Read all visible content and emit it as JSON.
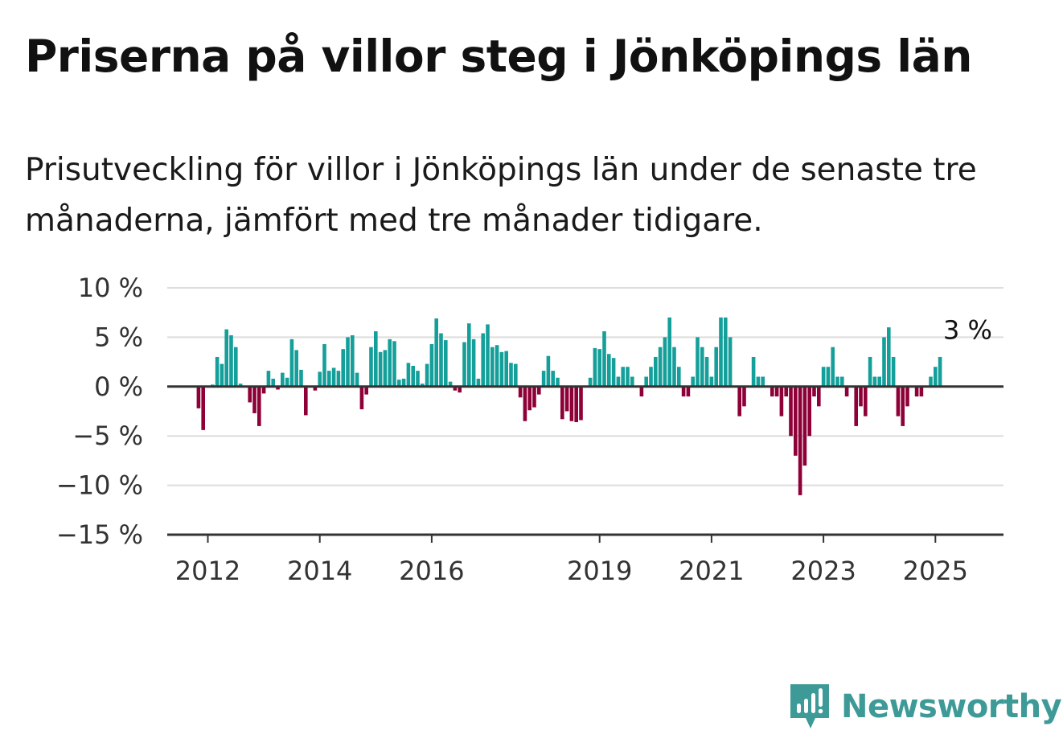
{
  "title": "Priserna på villor steg i Jönköpings län",
  "subtitle": "Prisutveckling för villor i Jönköpings län under de senaste tre månaderna, jämfört med tre månader tidigare.",
  "brand": {
    "name": "Newsworthy",
    "color": "#3d9a96",
    "icon": "bar-chart-speech-bubble-icon"
  },
  "colors": {
    "positive": "#159f9a",
    "negative": "#8e0038",
    "grid": "#dddddd",
    "zero_line": "#333333",
    "axis": "#333333"
  },
  "chart_data": {
    "type": "bar",
    "title": "Priserna på villor steg i Jönköpings län",
    "subtitle": "Prisutveckling för villor i Jönköpings län under de senaste tre månaderna, jämfört med tre månader tidigare.",
    "xlabel": "",
    "ylabel": "",
    "unit": "%",
    "ylim": [
      -15,
      10
    ],
    "y_ticks": [
      10,
      5,
      0,
      -5,
      -10,
      -15
    ],
    "y_tick_labels": [
      "10 %",
      "5 %",
      "0 %",
      "−5 %",
      "−10 %",
      "−15 %"
    ],
    "x_start": "2011-06",
    "x_end": "2025-09",
    "x_ticks": [
      "2012",
      "2014",
      "2016",
      "2019",
      "2021",
      "2023",
      "2025"
    ],
    "grid": true,
    "legend": "none",
    "annotation": {
      "label": "3 %",
      "month": "2025-08",
      "value": 3
    },
    "series": [
      {
        "start": "2011-11",
        "values": [
          -2.2,
          -4.4,
          0,
          0.2,
          3.0,
          2.3,
          5.8,
          5.2,
          4.0,
          0.3,
          0,
          -1.6,
          -2.7,
          -4.0,
          -0.7,
          1.6,
          0.8,
          -0.3,
          1.4,
          0.9,
          4.8,
          3.7,
          1.7,
          -2.9,
          0,
          -0.4,
          1.5,
          4.3,
          1.6,
          1.9,
          1.6,
          3.8,
          5.0,
          5.2,
          1.4,
          -2.3,
          -0.8,
          4.0,
          5.6,
          3.5,
          3.7,
          4.8,
          4.6,
          0.7,
          0.8,
          2.4,
          2.1,
          1.6,
          0.3,
          2.3,
          4.3,
          6.9,
          5.4,
          4.7,
          0.5,
          -0.4,
          -0.6,
          4.5,
          6.4,
          4.8,
          0.8,
          5.4,
          6.3,
          4.0,
          4.2,
          3.5,
          3.6,
          2.4,
          2.3,
          -1.1,
          -3.5,
          -2.4,
          -2.1,
          -0.8,
          1.6,
          3.1,
          1.6,
          0.9,
          -3.3,
          -2.5,
          -3.5,
          -3.6,
          -3.4,
          0,
          0.9,
          3.9,
          3.8,
          5.6,
          3.3,
          2.9,
          1.0,
          2.0,
          2.0,
          1.0,
          0,
          -1.0,
          1.0,
          2.0,
          3.0,
          4.0,
          5.0,
          7.0,
          4.0,
          2.0,
          -1.0,
          -1.0,
          1.0,
          5.0,
          4.0,
          3.0,
          1.0,
          4.0,
          7.0,
          7.0,
          5.0,
          0,
          -3.0,
          -2.0,
          0,
          3.0,
          1.0,
          1.0,
          0,
          -1.0,
          -1.0,
          -3.0,
          -1.0,
          -5.0,
          -7.0,
          -11.0,
          -8.0,
          -5.0,
          -1.0,
          -2.0,
          2.0,
          2.0,
          4.0,
          1.0,
          1.0,
          -1.0,
          0,
          -4.0,
          -2.0,
          -3.0,
          3.0,
          1.0,
          1.0,
          5.0,
          6.0,
          3.0,
          -3.0,
          -4.0,
          -2.0,
          0,
          -1.0,
          -1.0,
          0,
          1.0,
          2.0,
          3.0
        ]
      }
    ]
  }
}
